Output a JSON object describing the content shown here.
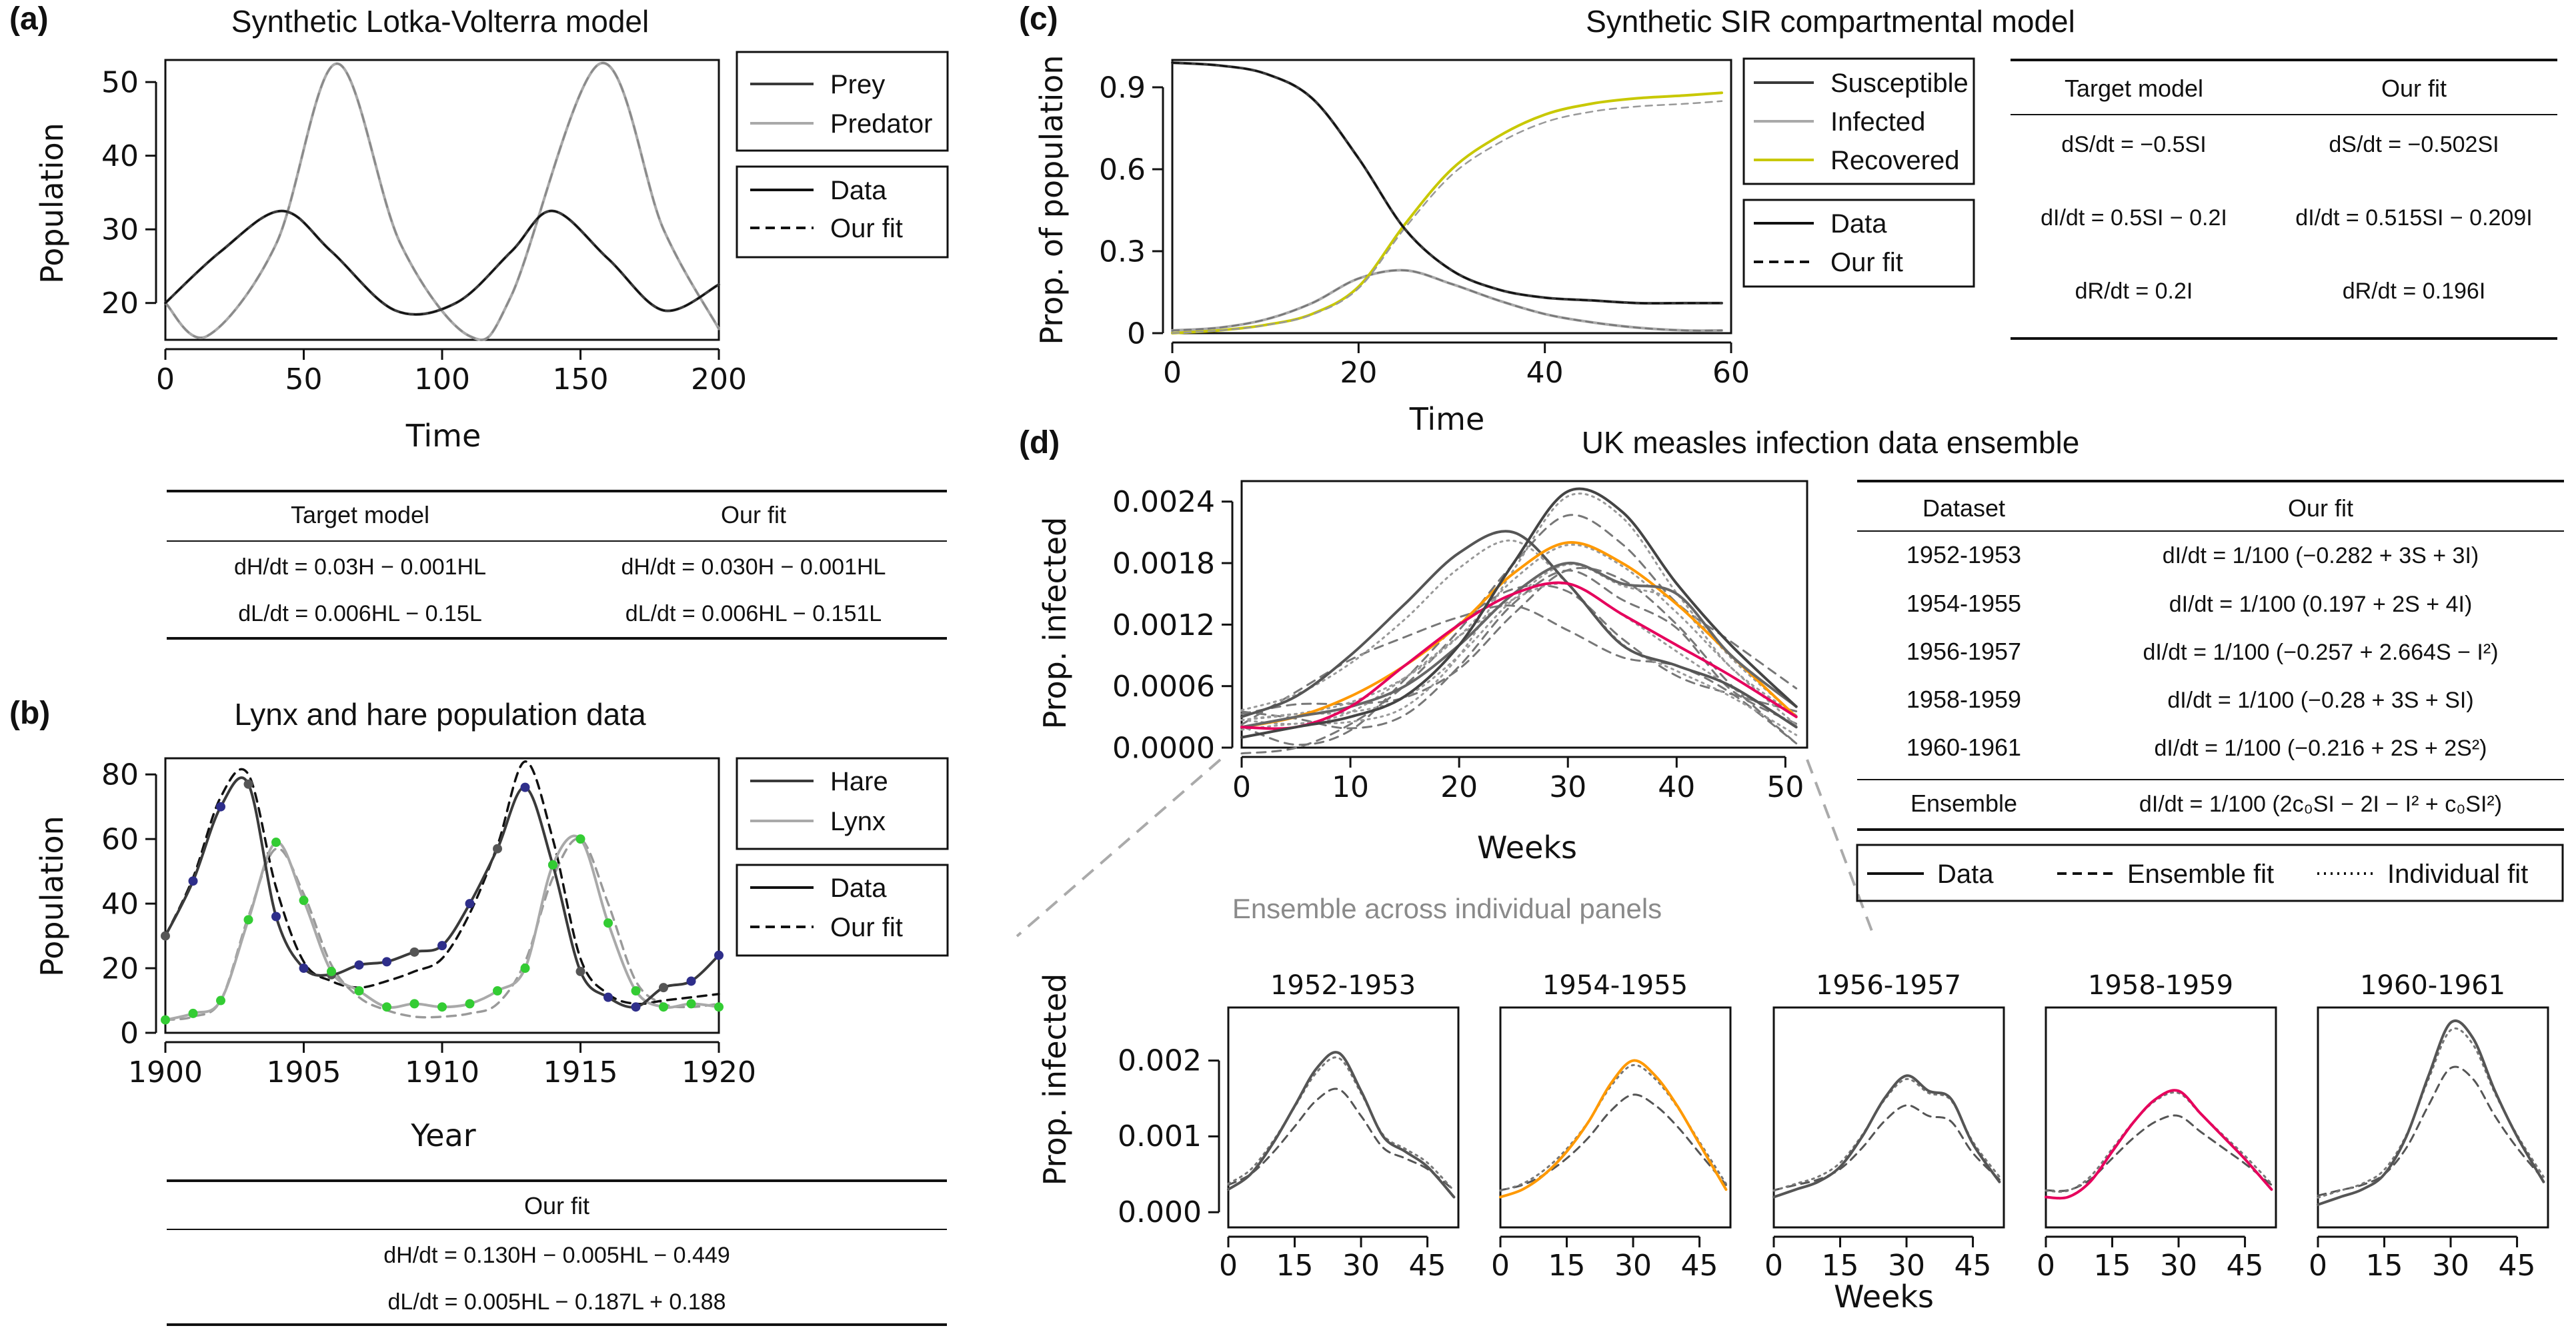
{
  "panels": {
    "a": {
      "label": "(a)",
      "title": "Synthetic Lotka-Volterra model",
      "xlabel": "Time",
      "ylabel": "Population",
      "legend_series": [
        "Prey",
        "Predator"
      ],
      "legend_style": [
        "Data",
        "Our fit"
      ],
      "table": {
        "headers": [
          "Target model",
          "Our fit"
        ],
        "rows": [
          [
            "dH/dt = 0.03H − 0.001HL",
            "dH/dt = 0.030H − 0.001HL"
          ],
          [
            "dL/dt = 0.006HL − 0.15L",
            "dL/dt = 0.006HL − 0.151L"
          ]
        ]
      }
    },
    "b": {
      "label": "(b)",
      "title": "Lynx and hare population data",
      "xlabel": "Year",
      "ylabel": "Population",
      "legend_series": [
        "Hare",
        "Lynx"
      ],
      "legend_style": [
        "Data",
        "Our fit"
      ],
      "table": {
        "headers": [
          "Our fit"
        ],
        "rows": [
          [
            "dH/dt = 0.130H − 0.005HL − 0.449"
          ],
          [
            "dL/dt = 0.005HL − 0.187L + 0.188"
          ]
        ]
      }
    },
    "c": {
      "label": "(c)",
      "title": "Synthetic SIR compartmental model",
      "xlabel": "Time",
      "ylabel": "Prop. of population",
      "legend_series": [
        "Susceptible",
        "Infected",
        "Recovered"
      ],
      "legend_style": [
        "Data",
        "Our fit"
      ],
      "table": {
        "headers": [
          "Target model",
          "Our fit"
        ],
        "rows": [
          [
            "dS/dt = −0.5SI",
            "dS/dt = −0.502SI"
          ],
          [
            "dI/dt = 0.5SI − 0.2I",
            "dI/dt = 0.515SI − 0.209I"
          ],
          [
            "dR/dt = 0.2I",
            "dR/dt = 0.196I"
          ]
        ]
      }
    },
    "d": {
      "label": "(d)",
      "title": "UK measles infection data ensemble",
      "xlabel": "Weeks",
      "ylabel": "Prop. infected",
      "legend_style": [
        "Data",
        "Ensemble fit",
        "Individual fit"
      ],
      "subtitle": "Ensemble across individual panels",
      "sub_xlabel": "Weeks",
      "sub_ylabel": "Prop. infected",
      "table": {
        "headers": [
          "Dataset",
          "Our fit"
        ],
        "rows": [
          [
            "1952-1953",
            "dI/dt = 1/100 (−0.282 + 3S + 3I)"
          ],
          [
            "1954-1955",
            "dI/dt = 1/100 (0.197 + 2S + 4I)"
          ],
          [
            "1956-1957",
            "dI/dt = 1/100 (−0.257 + 2.664S − I²)"
          ],
          [
            "1958-1959",
            "dI/dt = 1/100 (−0.28 + 3S + SI)"
          ],
          [
            "1960-1961",
            "dI/dt = 1/100 (−0.216 + 2S + 2S²)"
          ],
          [
            "Ensemble",
            "dI/dt = 1/100 (2c₀SI − 2I − I² + c₀SI²)"
          ]
        ]
      }
    }
  },
  "colors": {
    "prey": "#3a3a3a",
    "predator": "#a9a9a9",
    "hare": "#3a3a3a",
    "lynx": "#a9a9a9",
    "susceptible": "#3a3a3a",
    "infected": "#a9a9a9",
    "recovered": "#c8c800",
    "measles_dark": "#555555",
    "measles_light": "#9a9a9a",
    "hare_dots": "#2e2e8a",
    "lynx_dots": "#33cc33",
    "fit_orange": "#ff9900",
    "fit_pink": "#e6005c"
  },
  "chart_data": [
    {
      "type": "line",
      "panel": "a",
      "xlim": [
        0,
        200
      ],
      "ylim": [
        15,
        53
      ],
      "xticks": [
        0,
        50,
        100,
        150,
        200
      ],
      "yticks": [
        20,
        30,
        40,
        50
      ],
      "series": [
        {
          "name": "Prey",
          "x": [
            0,
            20,
            42,
            60,
            83,
            105,
            125,
            140,
            160,
            180,
            200
          ],
          "y": [
            20,
            27,
            32.5,
            27,
            19,
            20,
            27,
            32.5,
            26,
            19,
            22.5
          ]
        },
        {
          "name": "Predator",
          "x": [
            0,
            15,
            40,
            62,
            85,
            110,
            125,
            157,
            180,
            200
          ],
          "y": [
            20,
            15.5,
            28,
            52.5,
            28,
            15.5,
            21,
            52.5,
            30,
            16.5
          ]
        }
      ]
    },
    {
      "type": "line",
      "panel": "b",
      "xlim": [
        1900,
        1920
      ],
      "ylim": [
        0,
        85
      ],
      "xticks": [
        1900,
        1905,
        1910,
        1915,
        1920
      ],
      "yticks": [
        0,
        20,
        40,
        60,
        80
      ],
      "series": [
        {
          "name": "Hare",
          "x": [
            1900,
            1901,
            1902,
            1903,
            1904,
            1905,
            1906,
            1907,
            1908,
            1909,
            1910,
            1911,
            1912,
            1913,
            1914,
            1915,
            1916,
            1917,
            1918,
            1919,
            1920
          ],
          "y": [
            30,
            47,
            70,
            77,
            36,
            20,
            18,
            21,
            22,
            25,
            27,
            40,
            57,
            76,
            52,
            19,
            11,
            8,
            14,
            16,
            24
          ]
        },
        {
          "name": "Lynx",
          "x": [
            1900,
            1901,
            1902,
            1903,
            1904,
            1905,
            1906,
            1907,
            1908,
            1909,
            1910,
            1911,
            1912,
            1913,
            1914,
            1915,
            1916,
            1917,
            1918,
            1919,
            1920
          ],
          "y": [
            4,
            6,
            10,
            35,
            59,
            41,
            19,
            13,
            8,
            9,
            8,
            9,
            13,
            20,
            52,
            60,
            34,
            13,
            8,
            9,
            8
          ]
        }
      ]
    },
    {
      "type": "line",
      "panel": "c",
      "xlim": [
        0,
        60
      ],
      "ylim": [
        0,
        1
      ],
      "xticks": [
        0,
        20,
        40,
        60
      ],
      "yticks": [
        0.0,
        0.3,
        0.6,
        0.9
      ],
      "series": [
        {
          "name": "Susceptible",
          "x": [
            0,
            5,
            10,
            15,
            20,
            25,
            30,
            35,
            40,
            45,
            50,
            55,
            59
          ],
          "y": [
            0.99,
            0.98,
            0.95,
            0.86,
            0.64,
            0.38,
            0.23,
            0.16,
            0.13,
            0.12,
            0.11,
            0.11,
            0.11
          ]
        },
        {
          "name": "Infected",
          "x": [
            0,
            5,
            10,
            15,
            20,
            25,
            30,
            35,
            40,
            45,
            50,
            55,
            59
          ],
          "y": [
            0.01,
            0.02,
            0.05,
            0.11,
            0.2,
            0.23,
            0.18,
            0.12,
            0.07,
            0.04,
            0.02,
            0.01,
            0.01
          ]
        },
        {
          "name": "Recovered",
          "x": [
            0,
            5,
            10,
            15,
            20,
            25,
            30,
            35,
            40,
            45,
            50,
            55,
            59
          ],
          "y": [
            0,
            0.01,
            0.03,
            0.07,
            0.17,
            0.4,
            0.6,
            0.72,
            0.8,
            0.84,
            0.86,
            0.87,
            0.88
          ]
        }
      ]
    },
    {
      "type": "line",
      "panel": "d",
      "xlim": [
        0,
        52
      ],
      "ylim": [
        0,
        0.0026
      ],
      "xticks": [
        0,
        10,
        20,
        30,
        40,
        50
      ],
      "yticks": [
        "0.0000",
        "0.0006",
        "0.0012",
        "0.0018",
        "0.0024"
      ],
      "series": [
        {
          "name": "1952-1953",
          "x": [
            0,
            5,
            10,
            15,
            20,
            25,
            30,
            35,
            40,
            45,
            51
          ],
          "y": [
            0.0003,
            0.0005,
            0.0009,
            0.0014,
            0.0019,
            0.0021,
            0.0016,
            0.001,
            0.0008,
            0.0006,
            0.0002
          ]
        },
        {
          "name": "1954-1955",
          "x": [
            0,
            5,
            10,
            15,
            20,
            25,
            30,
            35,
            40,
            45,
            51
          ],
          "y": [
            0.0002,
            0.0003,
            0.0005,
            0.0008,
            0.0012,
            0.0017,
            0.002,
            0.0018,
            0.0014,
            0.0009,
            0.0003
          ]
        },
        {
          "name": "1956-1957",
          "x": [
            0,
            5,
            10,
            15,
            20,
            25,
            30,
            35,
            40,
            45,
            51
          ],
          "y": [
            0.0002,
            0.0003,
            0.0004,
            0.0006,
            0.001,
            0.0015,
            0.0018,
            0.0016,
            0.0015,
            0.0009,
            0.0004
          ]
        },
        {
          "name": "1958-1959",
          "x": [
            0,
            5,
            10,
            15,
            20,
            25,
            30,
            35,
            40,
            45,
            51
          ],
          "y": [
            0.0002,
            0.0002,
            0.0004,
            0.0008,
            0.0012,
            0.0015,
            0.0016,
            0.0013,
            0.001,
            0.0007,
            0.0003
          ]
        },
        {
          "name": "1960-1961",
          "x": [
            0,
            5,
            10,
            15,
            20,
            25,
            30,
            35,
            40,
            45,
            51
          ],
          "y": [
            0.0001,
            0.0002,
            0.0003,
            0.0005,
            0.001,
            0.0018,
            0.0025,
            0.0023,
            0.0016,
            0.001,
            0.0004
          ]
        }
      ]
    },
    {
      "type": "line",
      "panel": "d-small",
      "xlim": [
        0,
        52
      ],
      "ylim": [
        -0.0002,
        0.0027
      ],
      "xticks": [
        0,
        15,
        30,
        45
      ],
      "yticks": [
        "0.000",
        "0.001",
        "0.002"
      ],
      "titles": [
        "1952-1953",
        "1954-1955",
        "1956-1957",
        "1958-1959",
        "1960-1961"
      ]
    }
  ]
}
